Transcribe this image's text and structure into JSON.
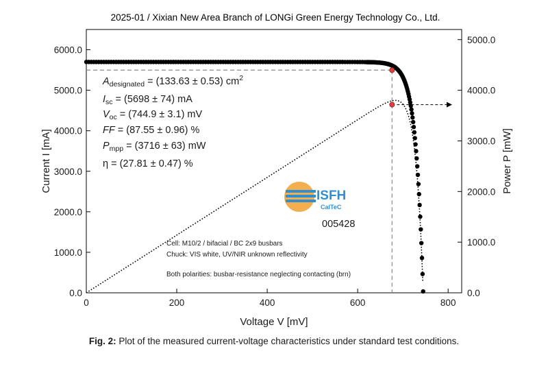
{
  "header": {
    "title": "2025-01 / Xixian New Area Branch of LONGi Green Energy Technology Co., Ltd."
  },
  "caption": {
    "label": "Fig. 2:",
    "text": "Plot of the measured current-voltage characteristics under standard test conditions."
  },
  "colors": {
    "curve": "#000000",
    "mpp_marker": "#e04040",
    "guide_line": "#8a8a8a",
    "logo_orange": "#f0a030",
    "logo_blue": "#2f8fd0"
  },
  "logo": {
    "text": "ISFH",
    "subtext": "CalTeC",
    "serial": "005428"
  },
  "parameters": [
    {
      "sym": "A",
      "sub": "designated",
      "rest": " = (133.63 ± 0.53) cm",
      "sup": "2"
    },
    {
      "sym": "I",
      "sub": "sc",
      "rest": " = (5698 ± 74) mA",
      "sup": ""
    },
    {
      "sym": "V",
      "sub": "oc",
      "rest": " = (744.9 ± 3.1) mV",
      "sup": ""
    },
    {
      "sym": "FF",
      "sub": "",
      "rest": " = (87.55 ± 0.96) %",
      "sup": ""
    },
    {
      "sym": "P",
      "sub": "mpp",
      "rest": " = (3716 ± 63) mW",
      "sup": ""
    },
    {
      "sym": "η",
      "sub": "",
      "rest": " = (27.81 ± 0.47) %",
      "sup": ""
    }
  ],
  "notes": [
    "Cell: M10/2 / bifacial / BC 2x9 busbars",
    "Chuck: VIS white, UV/NIR unknown reflectivity",
    "Both polarities: busbar-resistance neglecting contacting (brn)"
  ],
  "chart_data": {
    "type": "scatter",
    "xlabel": "Voltage V [mV]",
    "ylabel": "Current I [mA]",
    "y2label": "Power P [mW]",
    "xlim": [
      0,
      830
    ],
    "ylim": [
      0,
      6500
    ],
    "y2lim": [
      0,
      5200
    ],
    "xticks": [
      "0",
      "200",
      "400",
      "600",
      "800"
    ],
    "xtick_values": [
      0,
      200,
      400,
      600,
      800
    ],
    "yticks": [
      "0.0",
      "1000.0",
      "2000.0",
      "3000.0",
      "4000.0",
      "5000.0",
      "6000.0"
    ],
    "ytick_values": [
      0,
      1000,
      2000,
      3000,
      4000,
      5000,
      6000
    ],
    "y2ticks": [
      "0.0",
      "1000.0",
      "2000.0",
      "3000.0",
      "4000.0",
      "5000.0"
    ],
    "y2tick_values": [
      0,
      1000,
      2000,
      3000,
      4000,
      5000
    ],
    "isc_mA": 5698,
    "voc_mV": 744.9,
    "ff_percent": 87.55,
    "pmpp_mW": 3716,
    "mpp_point": {
      "voltage_mV": 676,
      "current_mA": 5497,
      "power_mW": 3716
    },
    "series": [
      {
        "name": "",
        "kind": "iv_points",
        "axis": "left"
      },
      {
        "name": "",
        "kind": "power_dotted",
        "axis": "right"
      }
    ]
  }
}
